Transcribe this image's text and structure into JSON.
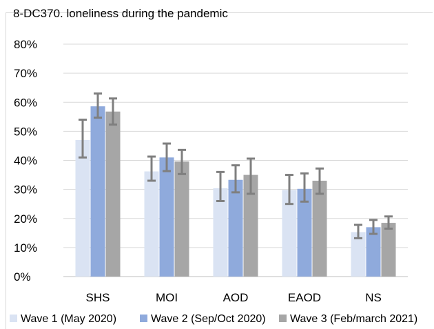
{
  "chart_data": {
    "type": "bar",
    "title": "8-DC370. loneliness during the pandemic",
    "categories": [
      "SHS",
      "MOI",
      "AOD",
      "EAOD",
      "NS"
    ],
    "ylim": [
      0,
      0.8
    ],
    "yticks": [
      "0%",
      "10%",
      "20%",
      "30%",
      "40%",
      "50%",
      "60%",
      "70%",
      "80%"
    ],
    "grid": true,
    "legend_position": "bottom",
    "error_bars": true,
    "series": [
      {
        "name": "Wave 1 (May 2020)",
        "color": "#dae3f3",
        "values": [
          0.47,
          0.362,
          0.304,
          0.298,
          0.153
        ],
        "error_low": [
          0.41,
          0.33,
          0.26,
          0.25,
          0.132
        ],
        "error_high": [
          0.54,
          0.413,
          0.36,
          0.35,
          0.178
        ]
      },
      {
        "name": "Wave 2 (Sep/Oct 2020)",
        "color": "#8faadc",
        "values": [
          0.586,
          0.41,
          0.333,
          0.302,
          0.17
        ],
        "error_low": [
          0.547,
          0.363,
          0.29,
          0.258,
          0.147
        ],
        "error_high": [
          0.63,
          0.458,
          0.383,
          0.355,
          0.195
        ]
      },
      {
        "name": "Wave 3 (Feb/march 2021)",
        "color": "#a6a6a6",
        "values": [
          0.568,
          0.396,
          0.35,
          0.33,
          0.185
        ],
        "error_low": [
          0.523,
          0.353,
          0.285,
          0.285,
          0.165
        ],
        "error_high": [
          0.613,
          0.436,
          0.406,
          0.372,
          0.207
        ]
      }
    ]
  }
}
